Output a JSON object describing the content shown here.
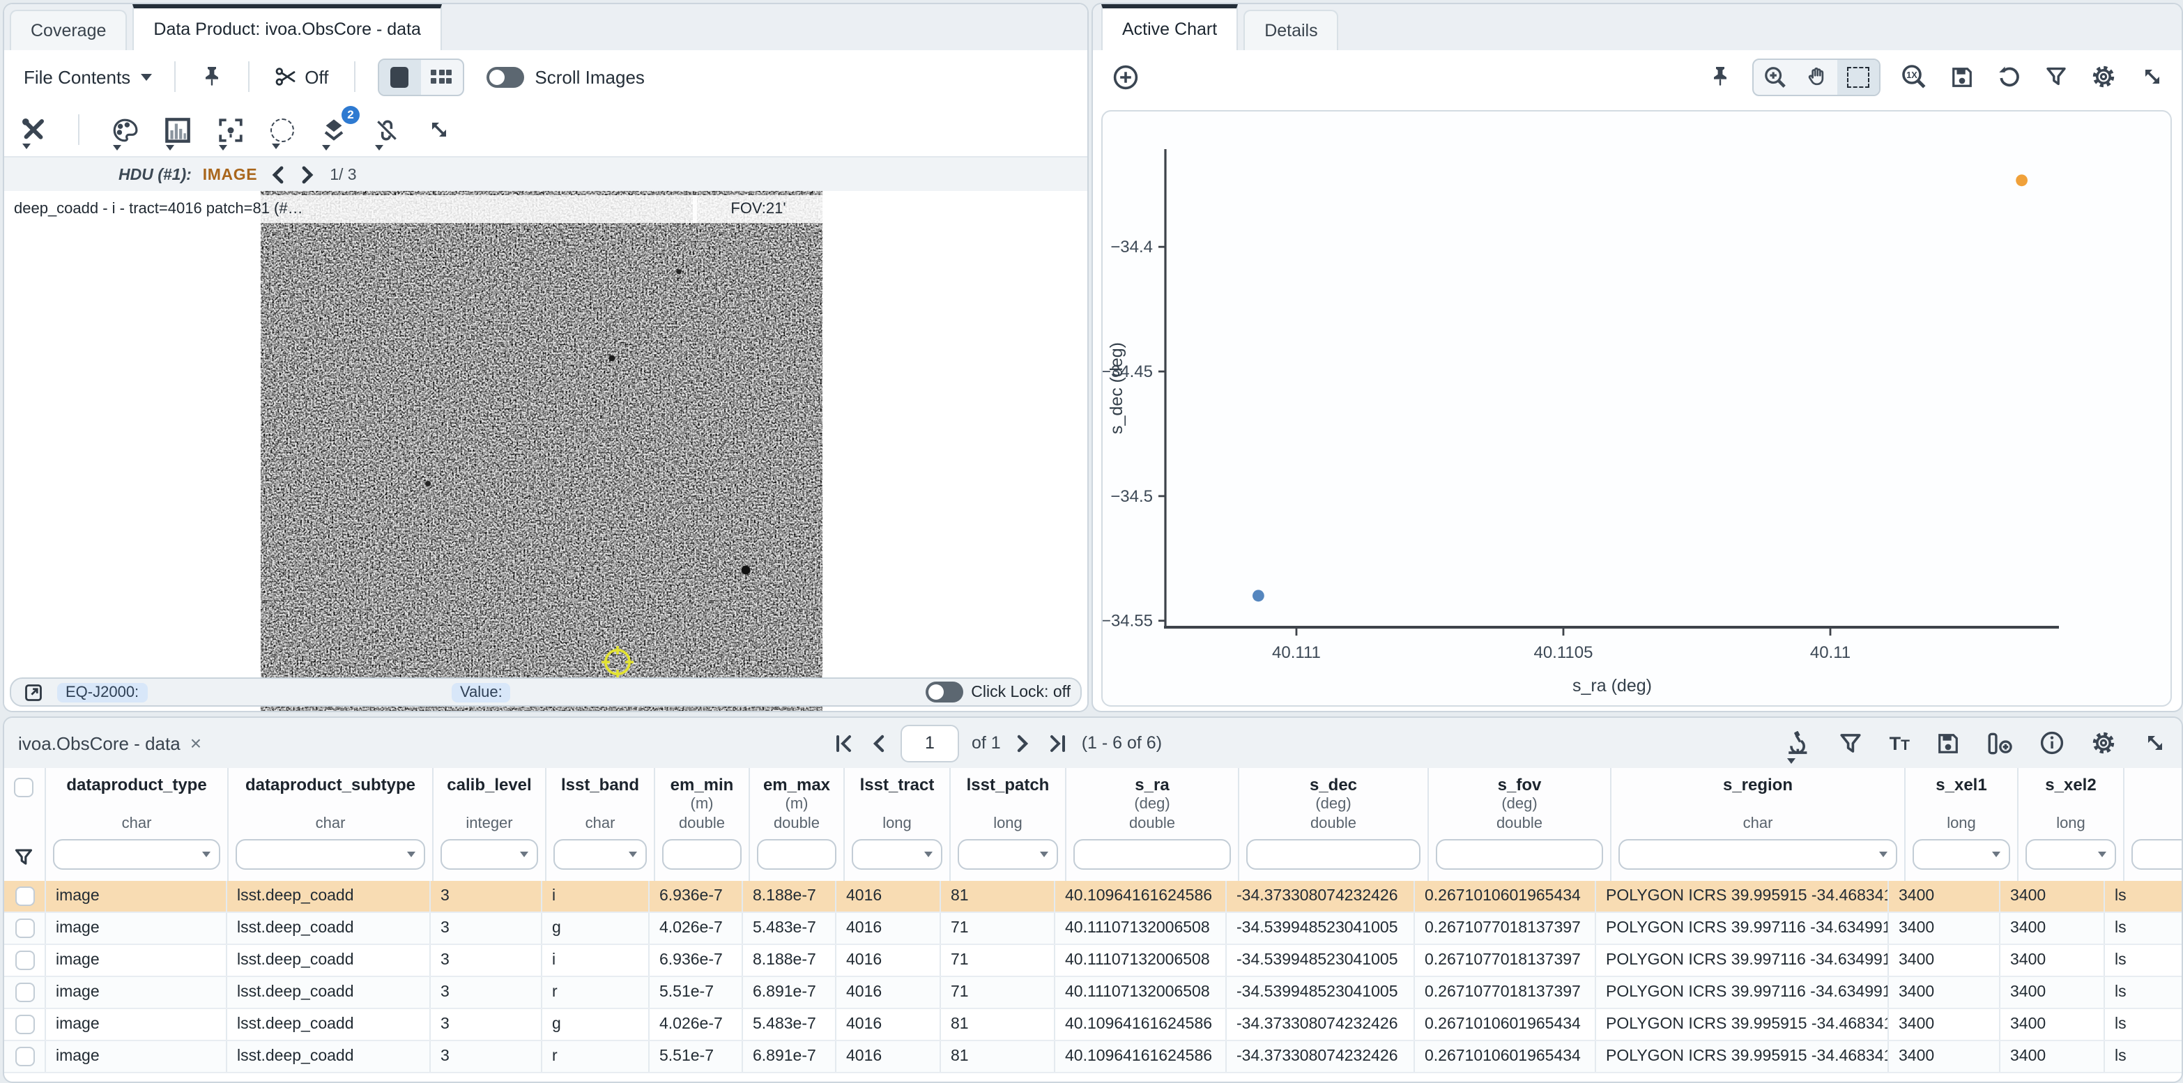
{
  "colors": {
    "accent_blue": "#2e7ad1",
    "row_highlight": "#f8dcb3",
    "point_blue": "#5586be",
    "point_orange": "#f0a13a",
    "hdu_image_label": "#a9661c"
  },
  "left_panel": {
    "tabs": [
      {
        "label": "Coverage"
      },
      {
        "label": "Data Product: ivoa.ObsCore - data"
      }
    ],
    "toolbar": {
      "file_contents_label": "File Contents",
      "cut_off_label": "Off",
      "scroll_images_label": "Scroll Images",
      "layers_badge": "2"
    },
    "hdu_bar": {
      "hdu_label": "HDU (#1):",
      "hdu_type": "IMAGE",
      "counter": "1/ 3"
    },
    "image_view": {
      "title": "deep_coadd - i - tract=4016 patch=81 (#…",
      "fov": "FOV:21'"
    },
    "status_bar": {
      "coord_label": "EQ-J2000:",
      "value_label": "Value:",
      "click_lock_label": "Click Lock: off"
    }
  },
  "right_panel": {
    "tabs": [
      {
        "label": "Active Chart"
      },
      {
        "label": "Details"
      }
    ]
  },
  "chart_data": {
    "type": "scatter",
    "title": "",
    "xlabel": "s_ra (deg)",
    "ylabel": "s_dec (deg)",
    "grid": false,
    "legend": null,
    "x_reversed": true,
    "x_range_left_to_right": [
      40.1112454,
      40.1095718
    ],
    "y_range_bottom_to_top": [
      -34.5526,
      -34.3608
    ],
    "x_ticks": [
      {
        "v": 40.111,
        "label": "40.111"
      },
      {
        "v": 40.1105,
        "label": "40.1105"
      },
      {
        "v": 40.11,
        "label": "40.11"
      }
    ],
    "y_ticks": [
      {
        "v": -34.4,
        "label": "−34.4"
      },
      {
        "v": -34.45,
        "label": "−34.45"
      },
      {
        "v": -34.5,
        "label": "−34.5"
      },
      {
        "v": -34.55,
        "label": "−34.55"
      }
    ],
    "points": [
      {
        "x": 40.10964161624586,
        "y": -34.373308074232426,
        "series": "highlighted",
        "color": "#f0a13a"
      },
      {
        "x": 40.11107132006508,
        "y": -34.539948523041005,
        "series": "data",
        "color": "#5586be"
      }
    ]
  },
  "table_panel": {
    "tab_label": "ivoa.ObsCore - data",
    "close_glyph": "×",
    "pagination": {
      "current_page": "1",
      "of_label": "of 1",
      "range_label": "(1 - 6 of 6)"
    },
    "toolbar_icons": [
      "microscope",
      "filter",
      "text-options",
      "save",
      "add-column",
      "info",
      "settings",
      "expand"
    ],
    "columns": [
      {
        "name": "dataproduct_type",
        "unit": "",
        "type": "char",
        "dropdown": true
      },
      {
        "name": "dataproduct_subtype",
        "unit": "",
        "type": "char",
        "dropdown": true
      },
      {
        "name": "calib_level",
        "unit": "",
        "type": "integer",
        "dropdown": true
      },
      {
        "name": "lsst_band",
        "unit": "",
        "type": "char",
        "dropdown": true
      },
      {
        "name": "em_min",
        "unit": "(m)",
        "type": "double",
        "dropdown": false
      },
      {
        "name": "em_max",
        "unit": "(m)",
        "type": "double",
        "dropdown": false
      },
      {
        "name": "lsst_tract",
        "unit": "",
        "type": "long",
        "dropdown": true
      },
      {
        "name": "lsst_patch",
        "unit": "",
        "type": "long",
        "dropdown": true
      },
      {
        "name": "s_ra",
        "unit": "(deg)",
        "type": "double",
        "dropdown": false
      },
      {
        "name": "s_dec",
        "unit": "(deg)",
        "type": "double",
        "dropdown": false
      },
      {
        "name": "s_fov",
        "unit": "(deg)",
        "type": "double",
        "dropdown": false
      },
      {
        "name": "s_region",
        "unit": "",
        "type": "char",
        "dropdown": true
      },
      {
        "name": "s_xel1",
        "unit": "",
        "type": "long",
        "dropdown": true
      },
      {
        "name": "s_xel2",
        "unit": "",
        "type": "long",
        "dropdown": true
      },
      {
        "name": "",
        "unit": "",
        "type": "",
        "dropdown": false
      }
    ],
    "selected_row_index": 0,
    "rows": [
      [
        "image",
        "lsst.deep_coadd",
        "3",
        "i",
        "6.936e-7",
        "8.188e-7",
        "4016",
        "81",
        "40.10964161624586",
        "-34.373308074232426",
        "0.2671010601965434",
        "POLYGON ICRS 39.995915 -34.468341 40.",
        "3400",
        "3400",
        "ls"
      ],
      [
        "image",
        "lsst.deep_coadd",
        "3",
        "g",
        "4.026e-7",
        "5.483e-7",
        "4016",
        "71",
        "40.11107132006508",
        "-34.539948523041005",
        "0.2671077018137397",
        "POLYGON ICRS 39.997116 -34.634991 40.",
        "3400",
        "3400",
        "ls"
      ],
      [
        "image",
        "lsst.deep_coadd",
        "3",
        "i",
        "6.936e-7",
        "8.188e-7",
        "4016",
        "71",
        "40.11107132006508",
        "-34.539948523041005",
        "0.2671077018137397",
        "POLYGON ICRS 39.997116 -34.634991 40.",
        "3400",
        "3400",
        "ls"
      ],
      [
        "image",
        "lsst.deep_coadd",
        "3",
        "r",
        "5.51e-7",
        "6.891e-7",
        "4016",
        "71",
        "40.11107132006508",
        "-34.539948523041005",
        "0.2671077018137397",
        "POLYGON ICRS 39.997116 -34.634991 40.",
        "3400",
        "3400",
        "ls"
      ],
      [
        "image",
        "lsst.deep_coadd",
        "3",
        "g",
        "4.026e-7",
        "5.483e-7",
        "4016",
        "81",
        "40.10964161624586",
        "-34.373308074232426",
        "0.2671010601965434",
        "POLYGON ICRS 39.995915 -34.468341 40.",
        "3400",
        "3400",
        "ls"
      ],
      [
        "image",
        "lsst.deep_coadd",
        "3",
        "r",
        "5.51e-7",
        "6.891e-7",
        "4016",
        "81",
        "40.10964161624586",
        "-34.373308074232426",
        "0.2671010601965434",
        "POLYGON ICRS 39.995915 -34.468341 40.",
        "3400",
        "3400",
        "ls"
      ]
    ]
  }
}
